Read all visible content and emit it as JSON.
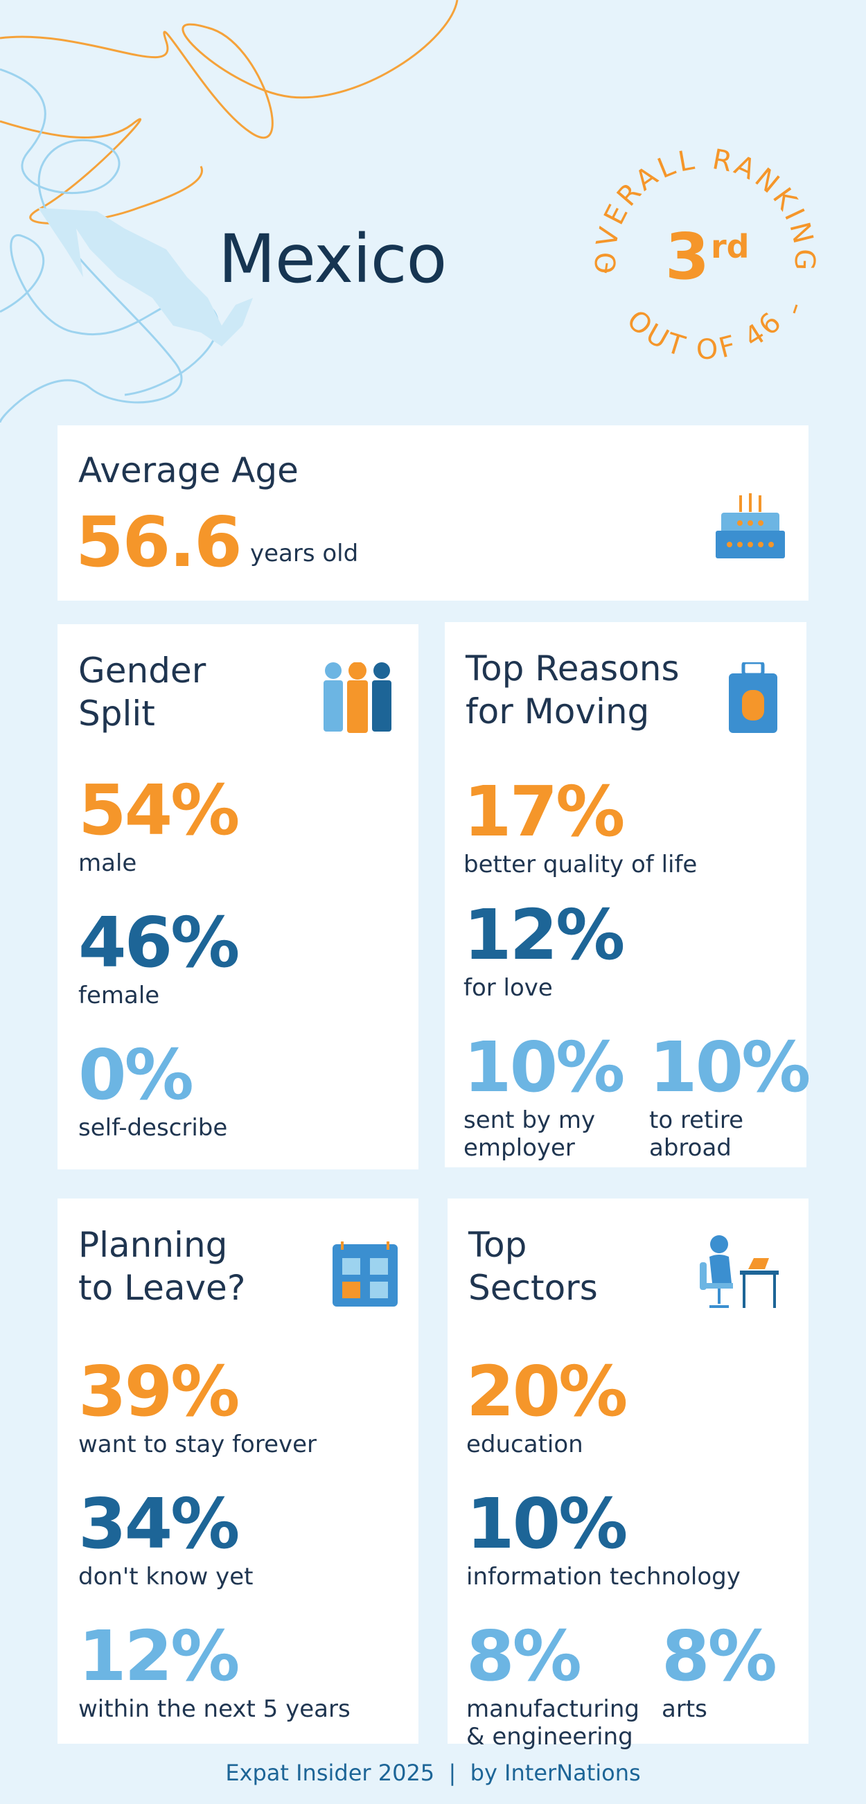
{
  "header": {
    "title": "Mexico"
  },
  "ranking": {
    "label": "OVERALL RANKING",
    "rank": "3",
    "suffix": "rd",
    "out_of": "OUT OF 46"
  },
  "average_age": {
    "title": "Average Age",
    "value": "56.6",
    "unit": "years old"
  },
  "gender_split": {
    "title": "Gender Split",
    "stats": [
      {
        "value": "54%",
        "label": "male"
      },
      {
        "value": "46%",
        "label": "female"
      },
      {
        "value": "0%",
        "label": "self-describe"
      }
    ]
  },
  "top_reasons": {
    "title": "Top Reasons for Moving",
    "stats": [
      {
        "value": "17%",
        "label": "better quality of life"
      },
      {
        "value": "12%",
        "label": "for love"
      },
      {
        "value": "10%",
        "label": "sent by my employer"
      },
      {
        "value": "10%",
        "label": "to retire abroad"
      }
    ]
  },
  "planning_to_leave": {
    "title": "Planning to Leave?",
    "stats": [
      {
        "value": "39%",
        "label": "want to stay forever"
      },
      {
        "value": "34%",
        "label": "don't know yet"
      },
      {
        "value": "12%",
        "label": "within the next 5 years"
      }
    ]
  },
  "top_sectors": {
    "title": "Top Sectors",
    "stats": [
      {
        "value": "20%",
        "label": "education"
      },
      {
        "value": "10%",
        "label": "information technology"
      },
      {
        "value": "8%",
        "label": "manufacturing & engineering"
      },
      {
        "value": "8%",
        "label": "arts"
      }
    ]
  },
  "footer": "Expat Insider 2025  |  by InterNations"
}
